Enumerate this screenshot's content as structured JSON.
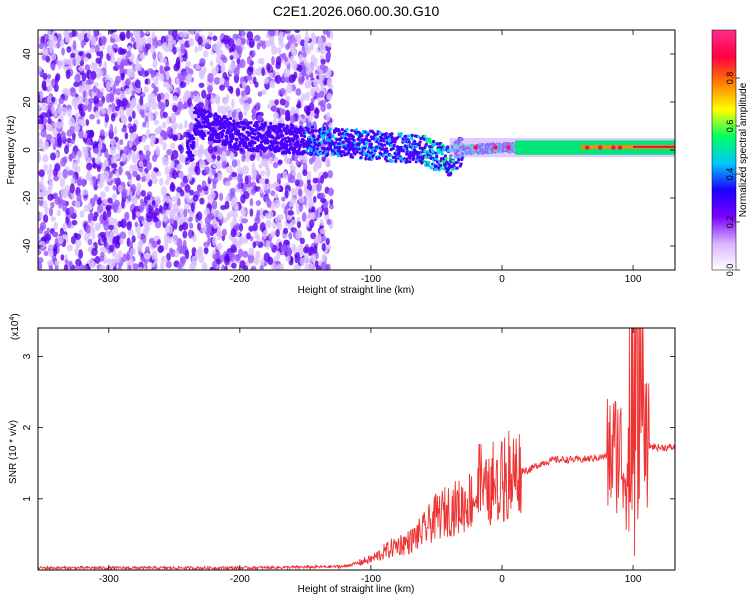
{
  "figure": {
    "title": "C2E1.2026.060.00.30.G10"
  },
  "chart_data": [
    {
      "type": "heatmap",
      "xlabel": "Height of straight line (km)",
      "ylabel": "Frequency (Hz)",
      "xlim": [
        -354,
        132
      ],
      "ylim": [
        -50,
        50
      ],
      "xticks": [
        -300,
        -200,
        -100,
        0,
        100
      ],
      "yticks": [
        -40,
        -20,
        0,
        20,
        40
      ],
      "colorbar": {
        "label": "Normalized spectral amplitude",
        "range": [
          0,
          1
        ],
        "ticks": [
          0.0,
          0.2,
          0.4,
          0.6,
          0.8
        ],
        "colormap": [
          "#ffffff",
          "#d8b4fe",
          "#7b00ff",
          "#1a00ff",
          "#00c8ff",
          "#00ff60",
          "#ffff00",
          "#ff8000",
          "#ff0040",
          "#ff2c8c"
        ]
      },
      "ridge": {
        "description_points_x": [
          -235,
          -200,
          -150,
          -100,
          -60,
          -40,
          -30,
          0,
          50,
          100,
          132
        ],
        "frequency_hz": [
          12,
          6,
          4,
          2,
          0,
          -5,
          0,
          1,
          1,
          1,
          1
        ]
      }
    },
    {
      "type": "line",
      "xlabel": "Height of straight line (km)",
      "ylabel": "SNR (10 * v/v)",
      "y_multiplier": "(x10",
      "y_multiplier_exp": "4",
      "xlim": [
        -354,
        132
      ],
      "ylim": [
        0,
        3.4
      ],
      "xticks": [
        -300,
        -200,
        -100,
        0,
        100
      ],
      "yticks": [
        1,
        2,
        3
      ],
      "series": [
        {
          "color": "#ee3333",
          "x": [
            -354,
            -300,
            -250,
            -200,
            -150,
            -120,
            -100,
            -90,
            -80,
            -70,
            -60,
            -50,
            -40,
            -30,
            -20,
            -10,
            0,
            10,
            20,
            30,
            40,
            50,
            60,
            70,
            80,
            85,
            90,
            95,
            100,
            105,
            110,
            120,
            132
          ],
          "y": [
            0.03,
            0.03,
            0.03,
            0.03,
            0.04,
            0.05,
            0.15,
            0.25,
            0.35,
            0.4,
            0.55,
            0.75,
            0.85,
            0.9,
            1.05,
            1.1,
            1.1,
            1.4,
            1.4,
            1.5,
            1.55,
            1.55,
            1.55,
            1.57,
            1.6,
            1.65,
            1.7,
            1.3,
            0.8,
            1.9,
            1.75,
            1.72,
            1.72
          ]
        }
      ]
    }
  ]
}
